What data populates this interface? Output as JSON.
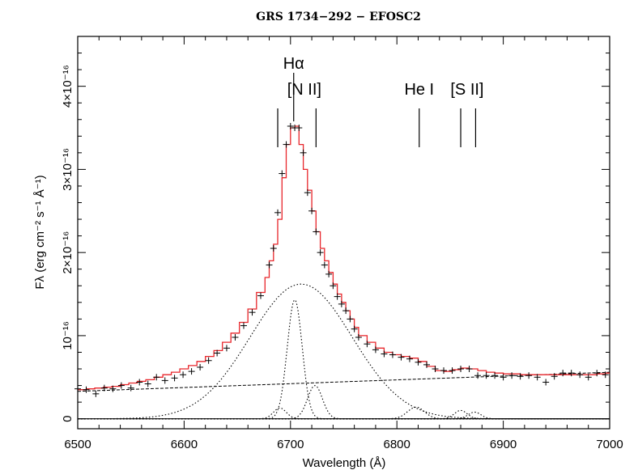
{
  "chart_data": {
    "type": "line",
    "title": "GRS 1734−292 − EFOSC2",
    "xlabel": "Wavelength (Å)",
    "ylabel": "Fλ (erg cm⁻² s⁻¹ Å⁻¹)",
    "xlim": [
      6500,
      7000
    ],
    "ylim": [
      -0.12,
      4.6
    ],
    "y_unit": "1e-16",
    "x_ticks": [
      {
        "value": 6500,
        "label": "6500"
      },
      {
        "value": 6600,
        "label": "6600"
      },
      {
        "value": 6700,
        "label": "6700"
      },
      {
        "value": 6800,
        "label": "6800"
      },
      {
        "value": 6900,
        "label": "6900"
      },
      {
        "value": 7000,
        "label": "7000"
      }
    ],
    "y_ticks": [
      {
        "value": 0,
        "label": "0"
      },
      {
        "value": 1,
        "label": "10⁻¹⁶"
      },
      {
        "value": 2,
        "label": "2×10⁻¹⁶"
      },
      {
        "value": 3,
        "label": "3×10⁻¹⁶"
      },
      {
        "value": 4,
        "label": "4×10⁻¹⁶"
      }
    ],
    "line_ids": [
      {
        "label": "Hα",
        "wavelengths": [
          6703
        ],
        "label_wavelength": 6703,
        "level": "high"
      },
      {
        "label": "[N II]",
        "wavelengths": [
          6688,
          6724
        ],
        "label_wavelength": 6713,
        "level": "mid"
      },
      {
        "label": "He I",
        "wavelengths": [
          6821
        ],
        "label_wavelength": 6821,
        "level": "mid"
      },
      {
        "label": "[S II]",
        "wavelengths": [
          6860,
          6874
        ],
        "label_wavelength": 6866,
        "level": "mid"
      }
    ],
    "data_points": {
      "x": [
        6500,
        6508,
        6517,
        6525,
        6533,
        6541,
        6550,
        6558,
        6566,
        6574,
        6582,
        6591,
        6599,
        6607,
        6615,
        6623,
        6631,
        6640,
        6648,
        6656,
        6664,
        6672,
        6680,
        6684,
        6688,
        6692,
        6696,
        6700,
        6704,
        6708,
        6712,
        6716,
        6720,
        6724,
        6728,
        6732,
        6736,
        6740,
        6744,
        6748,
        6752,
        6756,
        6760,
        6764,
        6772,
        6780,
        6788,
        6796,
        6804,
        6812,
        6820,
        6828,
        6836,
        6844,
        6852,
        6860,
        6868,
        6876,
        6884,
        6892,
        6900,
        6908,
        6916,
        6924,
        6932,
        6940,
        6948,
        6956,
        6964,
        6972,
        6980,
        6988,
        6996
      ],
      "y": [
        0.36,
        0.35,
        0.3,
        0.37,
        0.36,
        0.4,
        0.37,
        0.44,
        0.42,
        0.5,
        0.46,
        0.49,
        0.53,
        0.57,
        0.62,
        0.7,
        0.79,
        0.85,
        0.98,
        1.12,
        1.28,
        1.48,
        1.85,
        2.05,
        2.48,
        2.95,
        3.3,
        3.52,
        3.5,
        3.5,
        3.2,
        2.72,
        2.5,
        2.25,
        2.0,
        1.85,
        1.74,
        1.6,
        1.47,
        1.38,
        1.3,
        1.2,
        1.08,
        0.98,
        0.9,
        0.83,
        0.78,
        0.77,
        0.74,
        0.72,
        0.68,
        0.65,
        0.6,
        0.58,
        0.58,
        0.6,
        0.6,
        0.52,
        0.52,
        0.52,
        0.5,
        0.52,
        0.51,
        0.52,
        0.5,
        0.44,
        0.51,
        0.55,
        0.55,
        0.53,
        0.5,
        0.55,
        0.53
      ]
    },
    "model_histogram": {
      "x": [
        6500,
        6508,
        6516,
        6524,
        6532,
        6540,
        6548,
        6556,
        6564,
        6572,
        6580,
        6588,
        6596,
        6604,
        6612,
        6620,
        6628,
        6636,
        6644,
        6652,
        6660,
        6668,
        6676,
        6680,
        6684,
        6688,
        6692,
        6696,
        6700,
        6704,
        6708,
        6712,
        6716,
        6720,
        6724,
        6728,
        6732,
        6736,
        6740,
        6744,
        6748,
        6752,
        6756,
        6760,
        6764,
        6772,
        6780,
        6788,
        6796,
        6804,
        6812,
        6820,
        6828,
        6836,
        6844,
        6852,
        6860,
        6868,
        6876,
        6884,
        6892,
        6900,
        6908,
        6916,
        6924,
        6932,
        6940,
        6948,
        6956,
        6964,
        6972,
        6980,
        6988,
        6996
      ],
      "y": [
        0.35,
        0.36,
        0.37,
        0.38,
        0.39,
        0.41,
        0.43,
        0.45,
        0.47,
        0.5,
        0.53,
        0.56,
        0.6,
        0.64,
        0.69,
        0.75,
        0.82,
        0.92,
        1.03,
        1.16,
        1.32,
        1.52,
        1.7,
        1.9,
        2.1,
        2.4,
        2.9,
        3.3,
        3.5,
        3.52,
        3.3,
        3.0,
        2.75,
        2.5,
        2.25,
        2.05,
        1.9,
        1.76,
        1.62,
        1.5,
        1.4,
        1.3,
        1.2,
        1.1,
        1.0,
        0.92,
        0.85,
        0.8,
        0.77,
        0.75,
        0.73,
        0.69,
        0.63,
        0.58,
        0.57,
        0.59,
        0.61,
        0.6,
        0.58,
        0.56,
        0.55,
        0.54,
        0.54,
        0.53,
        0.53,
        0.53,
        0.53,
        0.53,
        0.53,
        0.53,
        0.53,
        0.53,
        0.54,
        0.55
      ]
    },
    "components": {
      "continuum": {
        "x": [
          6500,
          7000
        ],
        "y": [
          0.33,
          0.56
        ]
      },
      "broad": {
        "center": 6710,
        "amp": 1.62,
        "sigma": 48
      },
      "narrow": [
        {
          "center": 6704,
          "amp": 1.43,
          "sigma": 7
        },
        {
          "center": 6690,
          "amp": 0.13,
          "sigma": 6
        },
        {
          "center": 6723,
          "amp": 0.4,
          "sigma": 7
        },
        {
          "center": 6818,
          "amp": 0.14,
          "sigma": 8
        },
        {
          "center": 6860,
          "amp": 0.1,
          "sigma": 6
        },
        {
          "center": 6873,
          "amp": 0.08,
          "sigma": 6
        }
      ]
    },
    "colors": {
      "model": "#e8262b",
      "data": "#000000",
      "components": "#000000"
    },
    "grid": false
  }
}
